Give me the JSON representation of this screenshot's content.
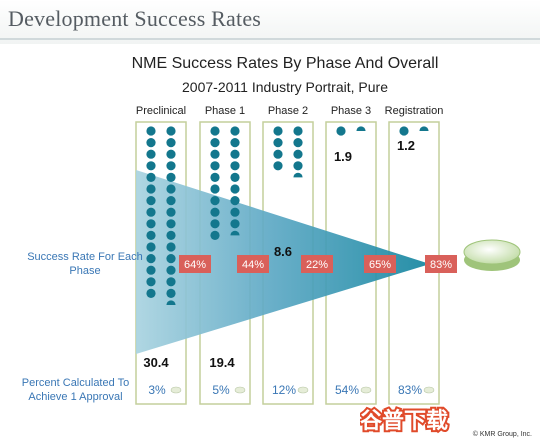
{
  "slide": {
    "title": "Development Success Rates"
  },
  "chart_data": {
    "type": "funnel",
    "title": "NME Success Rates By Phase And Overall",
    "subtitle": "2007-2011 Industry Portrait, Pure",
    "phases": [
      "Preclinical",
      "Phase 1",
      "Phase 2",
      "Phase 3",
      "Registration"
    ],
    "compounds_needed": [
      30.4,
      19.4,
      8.6,
      1.9,
      1.2
    ],
    "compounds_needed_labels": [
      "30.4",
      "19.4",
      "8.6",
      "1.9",
      "1.2"
    ],
    "success_rates": [
      "64%",
      "44%",
      "22%",
      "65%",
      "83%"
    ],
    "cumulative_percent": [
      "3%",
      "5%",
      "12%",
      "54%",
      "83%"
    ],
    "row_labels": {
      "success_rate": "Success Rate For Each Phase",
      "percent_calculated": "Percent Calculated To Achieve 1 Approval"
    },
    "colors": {
      "funnel_light": "#a9d3e0",
      "funnel_mid": "#5ea9c5",
      "funnel_dark": "#13859f",
      "rate_box": "#d9605a",
      "dot": "#13778d",
      "column_border": "#c4cf9c"
    }
  },
  "footer": {
    "credit": "© KMR Group, Inc.",
    "watermark": "谷普下载"
  }
}
